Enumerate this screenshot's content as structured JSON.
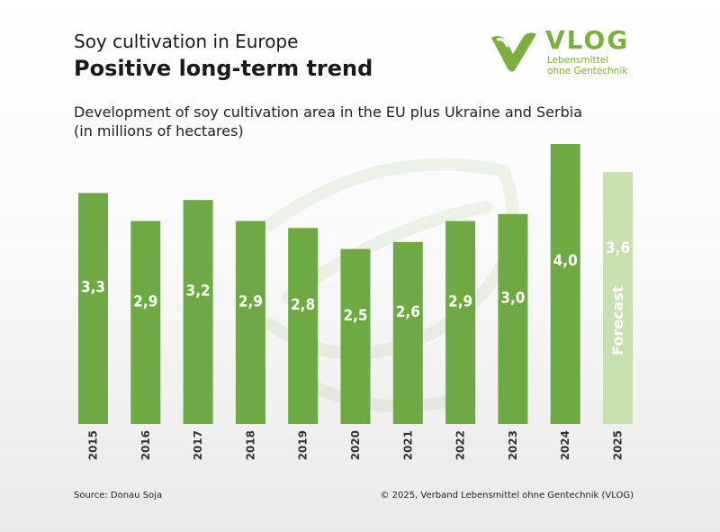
{
  "header": {
    "subtitle": "Soy cultivation in Europe",
    "title": "Positive long-term trend"
  },
  "logo": {
    "name": "VLOG",
    "tagline_1": "Lebensmittel",
    "tagline_2": "ohne Gentechnik"
  },
  "chart_heading": {
    "line1": "Development of soy cultivation area in the EU plus Ukraine and Serbia",
    "line2": "(in millions of hectares)"
  },
  "footer": {
    "source": "Source:  Donau Soja",
    "copyright": "© 2025, Verband  Lebensmittel  ohne Gentechnik  (VLOG)"
  },
  "colors": {
    "bar": "#6ea944",
    "forecast_bar": "#c8e0b0",
    "label": "#ffffff",
    "brand": "#7bb03e"
  },
  "chart_data": {
    "type": "bar",
    "categories": [
      "2015",
      "2016",
      "2017",
      "2018",
      "2019",
      "2020",
      "2021",
      "2022",
      "2023",
      "2024",
      "2025"
    ],
    "values": [
      3.3,
      2.9,
      3.2,
      2.9,
      2.8,
      2.5,
      2.6,
      2.9,
      3.0,
      4.0,
      3.6
    ],
    "labels": [
      "3,3",
      "2,9",
      "3,2",
      "2,9",
      "2,8",
      "2,5",
      "2,6",
      "2,9",
      "3,0",
      "4,0",
      "3,6"
    ],
    "forecast": [
      false,
      false,
      false,
      false,
      false,
      false,
      false,
      false,
      false,
      false,
      true
    ],
    "forecast_label": "Forecast",
    "ylim": [
      0,
      4.0
    ],
    "xlabel": "",
    "ylabel": "",
    "grid": false,
    "legend": "none"
  }
}
